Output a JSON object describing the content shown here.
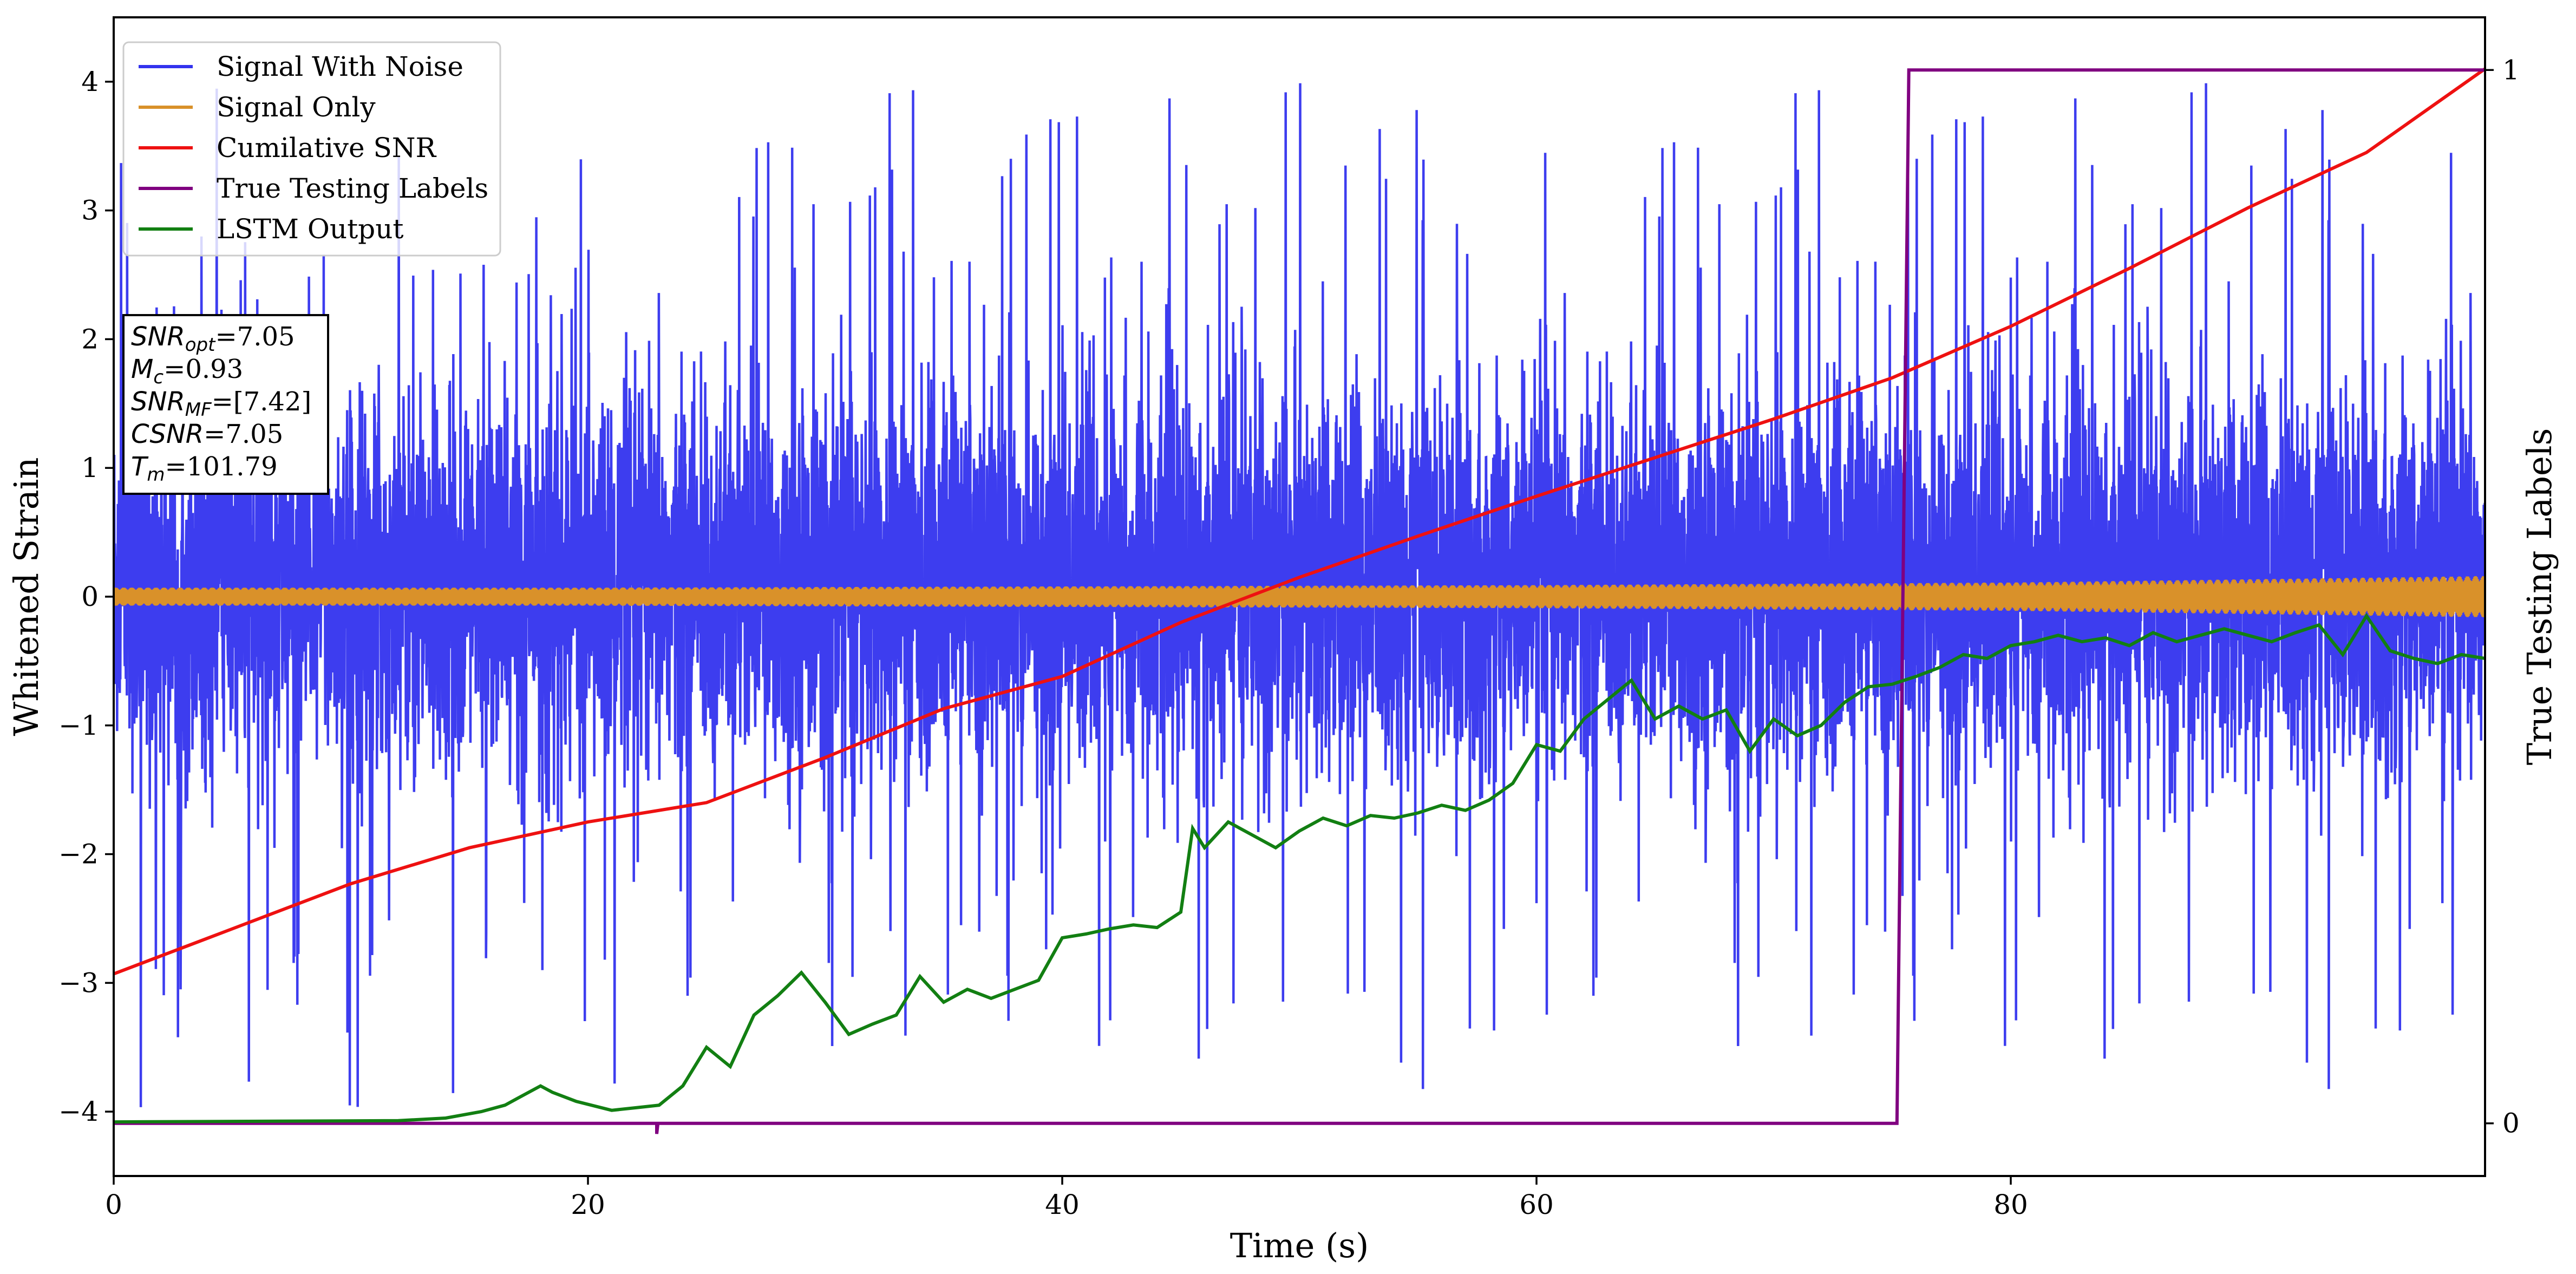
{
  "chart_data": {
    "type": "line",
    "xlabel": "Time (s)",
    "ylabel": "Whitened Strain",
    "y2label": "True Testing Labels",
    "xlim": [
      0,
      100
    ],
    "ylim": [
      -4.5,
      4.5
    ],
    "y2lim": [
      -0.05,
      1.05
    ],
    "xticks": [
      0,
      20,
      40,
      60,
      80
    ],
    "yticks": [
      -4,
      -3,
      -2,
      -1,
      0,
      1,
      2,
      3,
      4
    ],
    "y2ticks": [
      0,
      1
    ],
    "grid": false,
    "legend_position": "top-left",
    "series": [
      {
        "name": "Signal With Noise",
        "axis": "left",
        "color": "#3333ee",
        "description": "dense Gaussian-like noise",
        "envelope_typical": [
          -1.9,
          2.3
        ],
        "envelope_extremes": [
          -4.1,
          4.0
        ]
      },
      {
        "name": "Signal Only",
        "axis": "left",
        "color": "#d9912a",
        "amplitude_x": [
          0,
          20,
          40,
          60,
          80,
          100
        ],
        "amplitude": [
          0.07,
          0.07,
          0.08,
          0.09,
          0.11,
          0.16
        ]
      },
      {
        "name": "Cumilative SNR",
        "axis": "left",
        "color": "#ee1111",
        "x": [
          0,
          5,
          10,
          15,
          20,
          25,
          30,
          35,
          40,
          45,
          50,
          55,
          60,
          65,
          70,
          75,
          80,
          85,
          90,
          95,
          100
        ],
        "y": [
          -2.93,
          -2.58,
          -2.23,
          -1.95,
          -1.75,
          -1.6,
          -1.25,
          -0.87,
          -0.62,
          -0.2,
          0.15,
          0.47,
          0.78,
          1.08,
          1.38,
          1.7,
          2.1,
          2.55,
          3.02,
          3.45,
          4.1
        ]
      },
      {
        "name": "True Testing Labels",
        "axis": "right",
        "color": "#800080",
        "x": [
          0,
          22.9,
          22.9,
          22.95,
          75.2,
          75.7,
          100
        ],
        "y": [
          0,
          0,
          -0.01,
          0,
          0,
          1,
          1
        ]
      },
      {
        "name": "LSTM Output",
        "axis": "left",
        "color": "#127f12",
        "x": [
          0,
          12,
          14,
          15.5,
          16.5,
          17,
          18,
          18.5,
          19.5,
          21,
          22,
          23,
          24,
          25,
          26,
          27,
          28,
          29,
          30,
          31,
          32,
          33,
          34,
          35,
          36,
          37,
          38,
          39,
          40,
          41,
          42,
          43,
          44,
          45,
          45.5,
          46,
          47,
          48,
          49,
          50,
          51,
          52,
          53,
          54,
          55,
          56,
          57,
          58,
          59,
          60,
          61,
          62,
          63,
          64,
          65,
          66,
          67,
          68,
          69,
          70,
          71,
          72,
          73,
          74,
          75,
          76,
          77,
          78,
          79,
          80,
          81,
          82,
          83,
          84,
          85,
          86,
          87,
          88,
          89,
          90,
          91,
          92,
          93,
          94,
          95,
          96,
          97,
          98,
          99,
          100
        ],
        "y": [
          -4.08,
          -4.07,
          -4.05,
          -4.0,
          -3.95,
          -3.9,
          -3.8,
          -3.85,
          -3.92,
          -3.99,
          -3.97,
          -3.95,
          -3.8,
          -3.5,
          -3.65,
          -3.25,
          -3.1,
          -2.92,
          -3.15,
          -3.4,
          -3.32,
          -3.25,
          -2.95,
          -3.15,
          -3.05,
          -3.12,
          -3.05,
          -2.98,
          -2.65,
          -2.62,
          -2.58,
          -2.55,
          -2.57,
          -2.45,
          -1.8,
          -1.95,
          -1.75,
          -1.85,
          -1.95,
          -1.82,
          -1.72,
          -1.78,
          -1.7,
          -1.72,
          -1.68,
          -1.62,
          -1.66,
          -1.58,
          -1.45,
          -1.15,
          -1.2,
          -0.95,
          -0.8,
          -0.65,
          -0.95,
          -0.85,
          -0.95,
          -0.88,
          -1.2,
          -0.95,
          -1.08,
          -1.0,
          -0.82,
          -0.7,
          -0.68,
          -0.62,
          -0.55,
          -0.45,
          -0.48,
          -0.38,
          -0.35,
          -0.3,
          -0.35,
          -0.32,
          -0.38,
          -0.28,
          -0.35,
          -0.3,
          -0.25,
          -0.3,
          -0.35,
          -0.28,
          -0.22,
          -0.45,
          -0.15,
          -0.42,
          -0.48,
          -0.52,
          -0.45,
          -0.48
        ]
      }
    ],
    "annotation": {
      "lines": [
        {
          "main": "SNR",
          "sub": "opt",
          "value": "=7.05"
        },
        {
          "main": "M",
          "sub": "c",
          "value": "=0.93"
        },
        {
          "main": "SNR",
          "sub": "MF",
          "value": "=[7.42]"
        },
        {
          "main": "CSNR",
          "sub": "",
          "value": "=7.05"
        },
        {
          "main": "T",
          "sub": "m",
          "value": "=101.79"
        }
      ]
    }
  }
}
